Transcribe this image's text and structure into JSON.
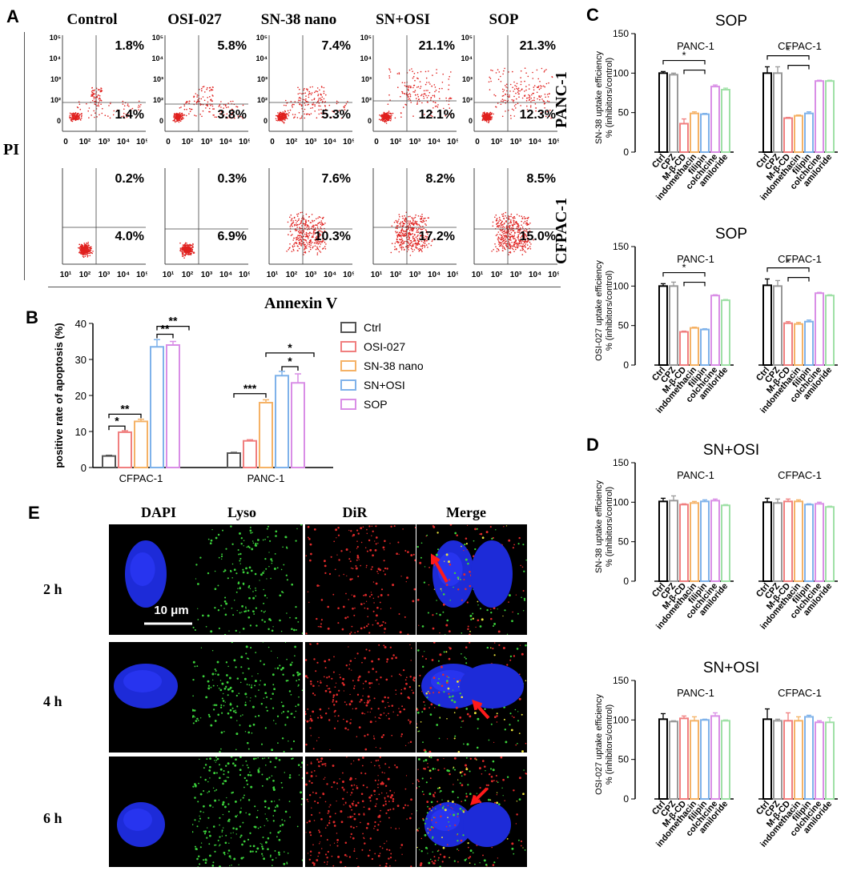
{
  "panel_a": {
    "letter": "A",
    "columns": [
      "Control",
      "OSI-027",
      "SN-38 nano",
      "SN+OSI",
      "SOP"
    ],
    "y_axis_label": "PI",
    "x_axis_label": "Annexin V",
    "row_labels": [
      "PANC-1",
      "CFPAC-1"
    ],
    "axis_ticks_top": [
      "0",
      "10²",
      "10³",
      "10⁴",
      "10⁵"
    ],
    "axis_ticks_bottom": [
      "10¹",
      "10²",
      "10³",
      "10⁴",
      "10⁵"
    ],
    "panc1_upper": [
      "1.8%",
      "5.8%",
      "7.4%",
      "21.1%",
      "21.3%"
    ],
    "panc1_lower": [
      "1.4%",
      "3.8%",
      "5.3%",
      "12.1%",
      "12.3%"
    ],
    "cfpac1_upper": [
      "0.2%",
      "0.3%",
      "7.6%",
      "8.2%",
      "8.5%"
    ],
    "cfpac1_lower": [
      "4.0%",
      "6.9%",
      "10.3%",
      "17.2%",
      "15.0%"
    ]
  },
  "panel_e": {
    "letter": "E",
    "columns": [
      "DAPI",
      "Lyso",
      "DiR",
      "Merge"
    ],
    "rows": [
      "2 h",
      "4 h",
      "6 h"
    ],
    "scale_bar": "10 μm"
  },
  "chart_data": [
    {
      "id": "B",
      "type": "bar",
      "letter": "B",
      "categories": [
        "CFPAC-1",
        "PANC-1"
      ],
      "ylabel": "positive rate of apoptosis (%)",
      "ylim": [
        0,
        40
      ],
      "yticks": [
        0,
        10,
        20,
        30,
        40
      ],
      "legend_position": "right",
      "series": [
        {
          "name": "Ctrl",
          "color": "#555555",
          "values": [
            3.2,
            4.0
          ],
          "errors": [
            0.2,
            0.2
          ]
        },
        {
          "name": "OSI-027",
          "color": "#f07f7f",
          "values": [
            9.8,
            7.4
          ],
          "errors": [
            0.4,
            0.3
          ]
        },
        {
          "name": "SN-38 nano",
          "color": "#f5b266",
          "values": [
            12.8,
            18.0
          ],
          "errors": [
            0.6,
            0.8
          ]
        },
        {
          "name": "SN+OSI",
          "color": "#7fb2ea",
          "values": [
            33.5,
            25.5
          ],
          "errors": [
            2.0,
            1.2
          ]
        },
        {
          "name": "SOP",
          "color": "#d98ee6",
          "values": [
            34.0,
            23.5
          ],
          "errors": [
            1.0,
            2.5
          ]
        }
      ],
      "significance": [
        "*",
        "**",
        "**",
        "**",
        "***",
        "*",
        "*"
      ]
    },
    {
      "id": "C1",
      "letter": "C",
      "type": "bar",
      "title": "SOP",
      "groups": [
        "PANC-1",
        "CFPAC-1"
      ],
      "categories": [
        "Ctrl",
        "CPZ",
        "M-β-CD",
        "indomethacin",
        "filipin",
        "colchicine",
        "amiloride"
      ],
      "colors": [
        "#000000",
        "#999999",
        "#f07f7f",
        "#f5b266",
        "#7fb2ea",
        "#d98ee6",
        "#9fe0a6"
      ],
      "ylabel": "SN-38 uptake efficiency\n% (inhibitors/control)",
      "ylim": [
        0,
        150
      ],
      "yticks": [
        0,
        50,
        100,
        150
      ],
      "series": [
        {
          "name": "PANC-1",
          "values": [
            100,
            98,
            36,
            49,
            48,
            83,
            79
          ],
          "errors": [
            2,
            2,
            6,
            2,
            1,
            2,
            2
          ]
        },
        {
          "name": "CFPAC-1",
          "values": [
            100,
            100,
            43,
            46,
            49,
            90,
            90
          ],
          "errors": [
            8,
            8,
            1,
            1,
            2,
            1,
            1
          ]
        }
      ],
      "significance": [
        "*",
        "*"
      ]
    },
    {
      "id": "C2",
      "type": "bar",
      "title": "SOP",
      "groups": [
        "PANC-1",
        "CFPAC-1"
      ],
      "categories": [
        "Ctrl",
        "CPZ",
        "M-β-CD",
        "indomethacin",
        "filipin",
        "colchicine",
        "amiloride"
      ],
      "colors": [
        "#000000",
        "#999999",
        "#f07f7f",
        "#f5b266",
        "#7fb2ea",
        "#d98ee6",
        "#9fe0a6"
      ],
      "ylabel": "OSI-027 uptake efficiency\n% (inhibitors/control)",
      "ylim": [
        0,
        150
      ],
      "yticks": [
        0,
        50,
        100,
        150
      ],
      "series": [
        {
          "name": "PANC-1",
          "values": [
            100,
            100,
            42,
            47,
            45,
            88,
            82
          ],
          "errors": [
            3,
            5,
            1,
            1,
            1,
            1,
            1
          ]
        },
        {
          "name": "CFPAC-1",
          "values": [
            101,
            100,
            53,
            52,
            55,
            91,
            88
          ],
          "errors": [
            8,
            7,
            2,
            2,
            2,
            1,
            1
          ]
        }
      ],
      "significance": [
        "*",
        "*"
      ]
    },
    {
      "id": "D1",
      "letter": "D",
      "type": "bar",
      "title": "SN+OSI",
      "groups": [
        "PANC-1",
        "CFPAC-1"
      ],
      "categories": [
        "Ctrl",
        "CPZ",
        "M-β-CD",
        "indomethacin",
        "filipin",
        "colchicine",
        "amiloride"
      ],
      "colors": [
        "#000000",
        "#999999",
        "#f07f7f",
        "#f5b266",
        "#7fb2ea",
        "#d98ee6",
        "#9fe0a6"
      ],
      "ylabel": "SN-38 uptake efficiency\n% (inhibitors/control)",
      "ylim": [
        0,
        150
      ],
      "yticks": [
        0,
        50,
        100,
        150
      ],
      "series": [
        {
          "name": "PANC-1",
          "values": [
            101,
            102,
            97,
            99,
            101,
            102,
            96
          ],
          "errors": [
            4,
            6,
            1,
            2,
            2,
            2,
            1
          ]
        },
        {
          "name": "CFPAC-1",
          "values": [
            100,
            99,
            101,
            101,
            97,
            98,
            94
          ],
          "errors": [
            5,
            5,
            3,
            2,
            1,
            2,
            1
          ]
        }
      ],
      "significance": []
    },
    {
      "id": "D2",
      "type": "bar",
      "title": "SN+OSI",
      "groups": [
        "PANC-1",
        "CFPAC-1"
      ],
      "categories": [
        "Ctrl",
        "CPZ",
        "M-β-CD",
        "indomethacin",
        "filipin",
        "colchicine",
        "amiloride"
      ],
      "colors": [
        "#000000",
        "#999999",
        "#f07f7f",
        "#f5b266",
        "#7fb2ea",
        "#d98ee6",
        "#9fe0a6"
      ],
      "ylabel": "OSI-027 uptake efficiency\n% (inhibitors/control)",
      "ylim": [
        0,
        150
      ],
      "yticks": [
        0,
        50,
        100,
        150
      ],
      "series": [
        {
          "name": "PANC-1",
          "values": [
            101,
            98,
            102,
            99,
            100,
            105,
            99
          ],
          "errors": [
            7,
            1,
            3,
            5,
            1,
            4,
            1
          ]
        },
        {
          "name": "CFPAC-1",
          "values": [
            101,
            99,
            99,
            99,
            104,
            97,
            97
          ],
          "errors": [
            13,
            2,
            10,
            5,
            2,
            2,
            6
          ]
        }
      ],
      "significance": []
    }
  ]
}
